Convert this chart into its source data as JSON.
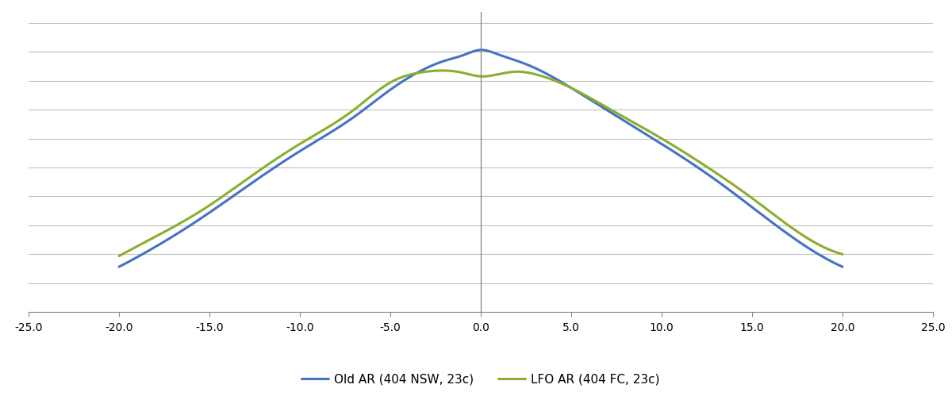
{
  "title": "",
  "xlabel": "",
  "ylabel": "",
  "xlim": [
    -25.0,
    25.0
  ],
  "ylim": [
    -0.08,
    0.75
  ],
  "xticks": [
    -25.0,
    -20.0,
    -15.0,
    -10.0,
    -5.0,
    0.0,
    5.0,
    10.0,
    15.0,
    20.0,
    25.0
  ],
  "yticks": [
    -0.08,
    0.0,
    0.08,
    0.16,
    0.24,
    0.32,
    0.4,
    0.48,
    0.56,
    0.64,
    0.72
  ],
  "blue_label": "Old AR (404 NSW, 23c)",
  "green_label": "LFO AR (404 FC, 23c)",
  "blue_color": "#4472C4",
  "green_color": "#8AAE2E",
  "background_color": "#FFFFFF",
  "grid_color": "#C0C0C0",
  "vline_color": "#808080",
  "blue_x": [
    -20,
    -17,
    -15,
    -13,
    -10,
    -7,
    -5,
    -3,
    -2,
    -1,
    0,
    1,
    2,
    3,
    5,
    7,
    10,
    13,
    15,
    17,
    20
  ],
  "blue_y": [
    0.045,
    0.13,
    0.195,
    0.265,
    0.365,
    0.46,
    0.535,
    0.595,
    0.615,
    0.63,
    0.645,
    0.632,
    0.615,
    0.595,
    0.54,
    0.478,
    0.385,
    0.285,
    0.21,
    0.135,
    0.045
  ],
  "green_x": [
    -20,
    -17,
    -15,
    -13,
    -10,
    -7,
    -5,
    -3,
    -2,
    -1,
    0,
    1,
    2,
    3,
    5,
    7,
    10,
    13,
    15,
    17,
    20
  ],
  "green_y": [
    0.075,
    0.155,
    0.215,
    0.285,
    0.385,
    0.48,
    0.555,
    0.585,
    0.588,
    0.582,
    0.572,
    0.578,
    0.585,
    0.578,
    0.54,
    0.485,
    0.4,
    0.305,
    0.235,
    0.16,
    0.08
  ],
  "linewidth": 2.2
}
